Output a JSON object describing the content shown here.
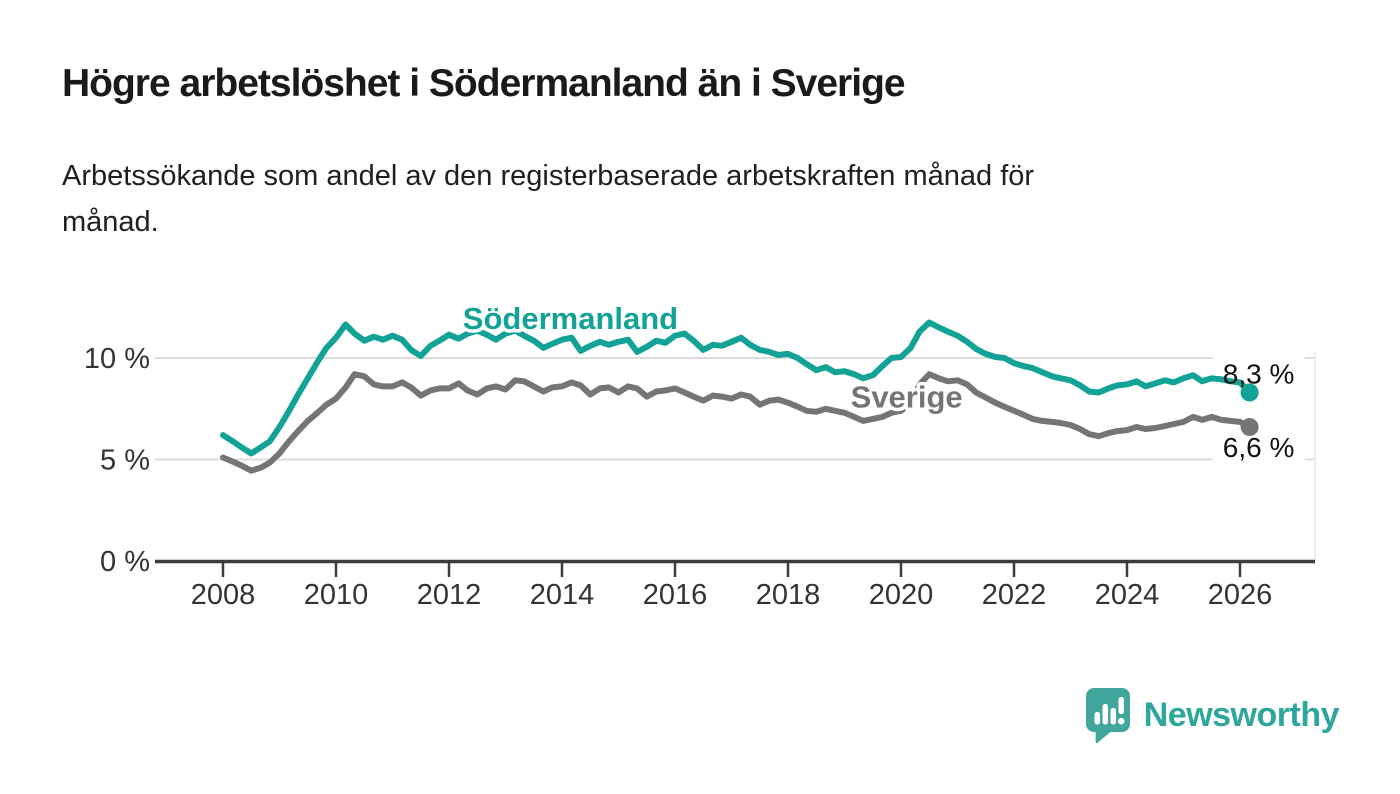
{
  "header": {
    "title": "Högre arbetslöshet i Södermanland än i Sverige",
    "subtitle": {
      "text": "Arbetssökande som andel av den registerbaserade arbetskraften månad för månad.",
      "line1": "Arbetssökande som andel av den registerbaserade arbetskraften månad för",
      "line2": "månad."
    }
  },
  "branding": {
    "logo_text": "Newsworthy",
    "logo_color": "#2da69b",
    "icon": "newsworthy-chart-bubble-icon",
    "icon_color": "#41a79d"
  },
  "chart_data": {
    "type": "line",
    "title": "Högre arbetslöshet i Södermanland än i Sverige",
    "subtitle": "Arbetssökande som andel av den registerbaserade arbetskraften månad för månad.",
    "xlabel": "",
    "ylabel": "",
    "xlim": [
      2006.8,
      2027.3
    ],
    "ylim": [
      0,
      12.5
    ],
    "grid": "horizontal",
    "legend_position": "inline-labels",
    "x_ticks": [
      2008,
      2010,
      2012,
      2014,
      2016,
      2018,
      2020,
      2022,
      2024,
      2026
    ],
    "y_ticks": [
      {
        "value": 0,
        "label": "0 %"
      },
      {
        "value": 5,
        "label": "5 %"
      },
      {
        "value": 10,
        "label": "10 %"
      }
    ],
    "y_gridlines": [
      5,
      10
    ],
    "colors": {
      "grid": "#dcdcdc",
      "axis": "#3c3c3c",
      "plot_right_border": "#e6e6e6"
    },
    "series": [
      {
        "name": "Södermanland",
        "color": "#12a296",
        "end_label": "8,3 %",
        "end_label_side": "above",
        "end_value": 8.3,
        "label_at": [
          2014.15,
          11.42
        ],
        "points": [
          [
            2008.0,
            6.2
          ],
          [
            2008.17,
            5.9
          ],
          [
            2008.33,
            5.6
          ],
          [
            2008.5,
            5.3
          ],
          [
            2008.67,
            5.6
          ],
          [
            2008.83,
            5.9
          ],
          [
            2009.0,
            6.6
          ],
          [
            2009.17,
            7.4
          ],
          [
            2009.33,
            8.2
          ],
          [
            2009.5,
            9.0
          ],
          [
            2009.67,
            9.8
          ],
          [
            2009.83,
            10.5
          ],
          [
            2010.0,
            11.0
          ],
          [
            2010.17,
            11.65
          ],
          [
            2010.33,
            11.2
          ],
          [
            2010.5,
            10.85
          ],
          [
            2010.67,
            11.05
          ],
          [
            2010.83,
            10.9
          ],
          [
            2011.0,
            11.1
          ],
          [
            2011.17,
            10.9
          ],
          [
            2011.33,
            10.4
          ],
          [
            2011.5,
            10.1
          ],
          [
            2011.67,
            10.6
          ],
          [
            2011.83,
            10.85
          ],
          [
            2012.0,
            11.15
          ],
          [
            2012.17,
            10.95
          ],
          [
            2012.33,
            11.2
          ],
          [
            2012.5,
            11.35
          ],
          [
            2012.67,
            11.15
          ],
          [
            2012.83,
            10.9
          ],
          [
            2013.0,
            11.2
          ],
          [
            2013.17,
            11.35
          ],
          [
            2013.33,
            11.1
          ],
          [
            2013.5,
            10.85
          ],
          [
            2013.67,
            10.5
          ],
          [
            2013.83,
            10.7
          ],
          [
            2014.0,
            10.9
          ],
          [
            2014.17,
            11.0
          ],
          [
            2014.33,
            10.35
          ],
          [
            2014.5,
            10.6
          ],
          [
            2014.67,
            10.8
          ],
          [
            2014.83,
            10.65
          ],
          [
            2015.0,
            10.8
          ],
          [
            2015.17,
            10.9
          ],
          [
            2015.33,
            10.3
          ],
          [
            2015.5,
            10.55
          ],
          [
            2015.67,
            10.85
          ],
          [
            2015.83,
            10.75
          ],
          [
            2016.0,
            11.1
          ],
          [
            2016.17,
            11.2
          ],
          [
            2016.33,
            10.85
          ],
          [
            2016.5,
            10.4
          ],
          [
            2016.67,
            10.65
          ],
          [
            2016.83,
            10.6
          ],
          [
            2017.0,
            10.8
          ],
          [
            2017.17,
            11.0
          ],
          [
            2017.33,
            10.65
          ],
          [
            2017.5,
            10.4
          ],
          [
            2017.67,
            10.3
          ],
          [
            2017.83,
            10.15
          ],
          [
            2018.0,
            10.2
          ],
          [
            2018.17,
            10.0
          ],
          [
            2018.33,
            9.7
          ],
          [
            2018.5,
            9.4
          ],
          [
            2018.67,
            9.55
          ],
          [
            2018.83,
            9.3
          ],
          [
            2019.0,
            9.35
          ],
          [
            2019.17,
            9.2
          ],
          [
            2019.33,
            9.0
          ],
          [
            2019.5,
            9.15
          ],
          [
            2019.67,
            9.6
          ],
          [
            2019.83,
            10.0
          ],
          [
            2020.0,
            10.05
          ],
          [
            2020.17,
            10.5
          ],
          [
            2020.33,
            11.3
          ],
          [
            2020.5,
            11.75
          ],
          [
            2020.67,
            11.5
          ],
          [
            2020.83,
            11.3
          ],
          [
            2021.0,
            11.1
          ],
          [
            2021.17,
            10.8
          ],
          [
            2021.33,
            10.45
          ],
          [
            2021.5,
            10.2
          ],
          [
            2021.67,
            10.05
          ],
          [
            2021.83,
            10.0
          ],
          [
            2022.0,
            9.75
          ],
          [
            2022.17,
            9.6
          ],
          [
            2022.33,
            9.5
          ],
          [
            2022.5,
            9.3
          ],
          [
            2022.67,
            9.1
          ],
          [
            2022.83,
            9.0
          ],
          [
            2023.0,
            8.9
          ],
          [
            2023.17,
            8.65
          ],
          [
            2023.33,
            8.35
          ],
          [
            2023.5,
            8.3
          ],
          [
            2023.67,
            8.5
          ],
          [
            2023.83,
            8.65
          ],
          [
            2024.0,
            8.7
          ],
          [
            2024.17,
            8.85
          ],
          [
            2024.33,
            8.6
          ],
          [
            2024.5,
            8.75
          ],
          [
            2024.67,
            8.9
          ],
          [
            2024.83,
            8.8
          ],
          [
            2025.0,
            9.0
          ],
          [
            2025.17,
            9.15
          ],
          [
            2025.33,
            8.85
          ],
          [
            2025.5,
            9.0
          ],
          [
            2025.67,
            8.95
          ],
          [
            2025.83,
            8.85
          ],
          [
            2026.0,
            8.8
          ],
          [
            2026.17,
            8.3
          ]
        ]
      },
      {
        "name": "Sverige",
        "color": "#757575",
        "end_label": "6,6 %",
        "end_label_side": "below",
        "end_value": 6.6,
        "label_at": [
          2020.1,
          7.55
        ],
        "points": [
          [
            2008.0,
            5.1
          ],
          [
            2008.17,
            4.9
          ],
          [
            2008.33,
            4.7
          ],
          [
            2008.5,
            4.45
          ],
          [
            2008.67,
            4.6
          ],
          [
            2008.83,
            4.85
          ],
          [
            2009.0,
            5.3
          ],
          [
            2009.17,
            5.9
          ],
          [
            2009.33,
            6.4
          ],
          [
            2009.5,
            6.9
          ],
          [
            2009.67,
            7.3
          ],
          [
            2009.83,
            7.7
          ],
          [
            2010.0,
            8.0
          ],
          [
            2010.17,
            8.55
          ],
          [
            2010.33,
            9.2
          ],
          [
            2010.5,
            9.1
          ],
          [
            2010.67,
            8.7
          ],
          [
            2010.83,
            8.6
          ],
          [
            2011.0,
            8.6
          ],
          [
            2011.17,
            8.8
          ],
          [
            2011.33,
            8.55
          ],
          [
            2011.5,
            8.15
          ],
          [
            2011.67,
            8.4
          ],
          [
            2011.83,
            8.5
          ],
          [
            2012.0,
            8.5
          ],
          [
            2012.17,
            8.75
          ],
          [
            2012.33,
            8.4
          ],
          [
            2012.5,
            8.2
          ],
          [
            2012.67,
            8.5
          ],
          [
            2012.83,
            8.6
          ],
          [
            2013.0,
            8.45
          ],
          [
            2013.17,
            8.9
          ],
          [
            2013.33,
            8.85
          ],
          [
            2013.5,
            8.6
          ],
          [
            2013.67,
            8.35
          ],
          [
            2013.83,
            8.55
          ],
          [
            2014.0,
            8.6
          ],
          [
            2014.17,
            8.8
          ],
          [
            2014.33,
            8.65
          ],
          [
            2014.5,
            8.2
          ],
          [
            2014.67,
            8.5
          ],
          [
            2014.83,
            8.55
          ],
          [
            2015.0,
            8.3
          ],
          [
            2015.17,
            8.6
          ],
          [
            2015.33,
            8.5
          ],
          [
            2015.5,
            8.1
          ],
          [
            2015.67,
            8.35
          ],
          [
            2015.83,
            8.4
          ],
          [
            2016.0,
            8.5
          ],
          [
            2016.17,
            8.3
          ],
          [
            2016.33,
            8.1
          ],
          [
            2016.5,
            7.9
          ],
          [
            2016.67,
            8.15
          ],
          [
            2016.83,
            8.1
          ],
          [
            2017.0,
            8.0
          ],
          [
            2017.17,
            8.2
          ],
          [
            2017.33,
            8.1
          ],
          [
            2017.5,
            7.7
          ],
          [
            2017.67,
            7.9
          ],
          [
            2017.83,
            7.95
          ],
          [
            2018.0,
            7.8
          ],
          [
            2018.17,
            7.6
          ],
          [
            2018.33,
            7.4
          ],
          [
            2018.5,
            7.35
          ],
          [
            2018.67,
            7.5
          ],
          [
            2018.83,
            7.4
          ],
          [
            2019.0,
            7.3
          ],
          [
            2019.17,
            7.1
          ],
          [
            2019.33,
            6.9
          ],
          [
            2019.5,
            7.0
          ],
          [
            2019.67,
            7.1
          ],
          [
            2019.83,
            7.3
          ],
          [
            2020.0,
            7.4
          ],
          [
            2020.17,
            7.8
          ],
          [
            2020.33,
            8.7
          ],
          [
            2020.5,
            9.2
          ],
          [
            2020.67,
            9.0
          ],
          [
            2020.83,
            8.85
          ],
          [
            2021.0,
            8.9
          ],
          [
            2021.17,
            8.7
          ],
          [
            2021.33,
            8.3
          ],
          [
            2021.5,
            8.05
          ],
          [
            2021.67,
            7.8
          ],
          [
            2021.83,
            7.6
          ],
          [
            2022.0,
            7.4
          ],
          [
            2022.17,
            7.2
          ],
          [
            2022.33,
            7.0
          ],
          [
            2022.5,
            6.9
          ],
          [
            2022.67,
            6.85
          ],
          [
            2022.83,
            6.8
          ],
          [
            2023.0,
            6.7
          ],
          [
            2023.17,
            6.5
          ],
          [
            2023.33,
            6.25
          ],
          [
            2023.5,
            6.15
          ],
          [
            2023.67,
            6.3
          ],
          [
            2023.83,
            6.4
          ],
          [
            2024.0,
            6.45
          ],
          [
            2024.17,
            6.6
          ],
          [
            2024.33,
            6.5
          ],
          [
            2024.5,
            6.55
          ],
          [
            2024.67,
            6.65
          ],
          [
            2024.83,
            6.75
          ],
          [
            2025.0,
            6.85
          ],
          [
            2025.17,
            7.1
          ],
          [
            2025.33,
            6.95
          ],
          [
            2025.5,
            7.1
          ],
          [
            2025.67,
            6.95
          ],
          [
            2025.83,
            6.9
          ],
          [
            2026.0,
            6.85
          ],
          [
            2026.17,
            6.6
          ]
        ]
      }
    ]
  }
}
